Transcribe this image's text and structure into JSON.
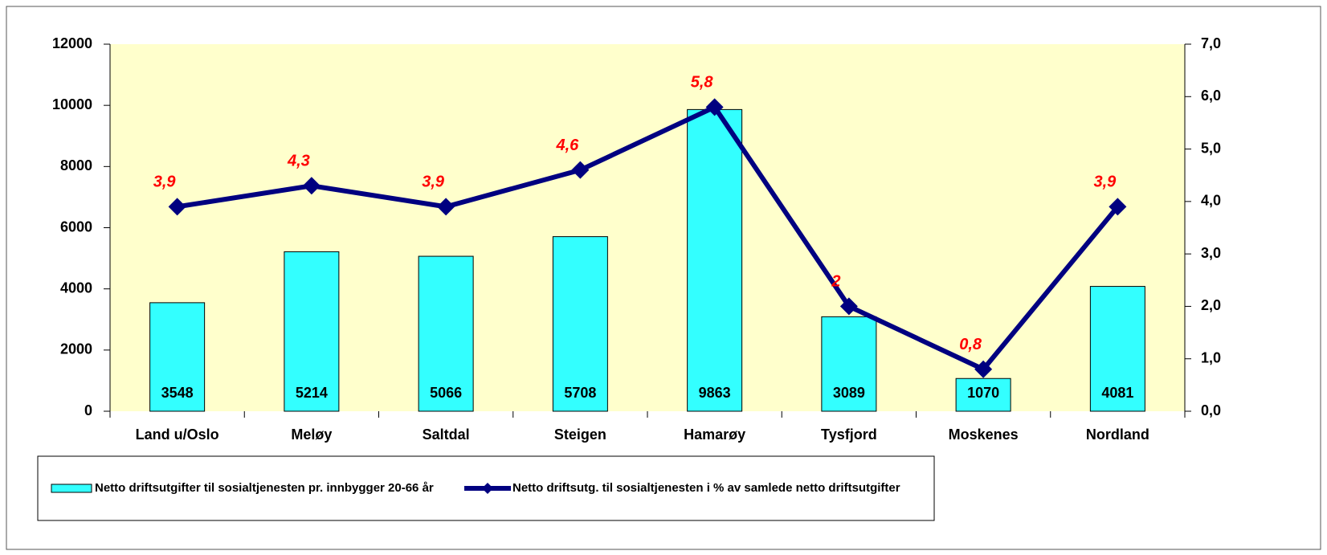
{
  "chart_data": {
    "type": "combo",
    "categories": [
      "Land u/Oslo",
      "Meløy",
      "Saltdal",
      "Steigen",
      "Hamarøy",
      "Tysfjord",
      "Moskenes",
      "Nordland"
    ],
    "series": [
      {
        "name": "Netto driftsutgifter til sosialtjenesten pr. innbygger 20-66 år",
        "type": "bar",
        "color": "#33ffff",
        "values": [
          3548,
          5214,
          5066,
          5708,
          9863,
          3089,
          1070,
          4081
        ]
      },
      {
        "name": "Netto driftsutg. til sosialtjenesten i % av samlede netto driftsutgifter",
        "type": "line",
        "axis": "y2",
        "color": "#000080",
        "values": [
          3.9,
          4.3,
          3.9,
          4.6,
          5.8,
          2,
          0.8,
          3.9
        ],
        "value_labels": [
          "3,9",
          "4,3",
          "3,9",
          "4,6",
          "5,8",
          "2",
          "0,8",
          "3,9"
        ]
      }
    ],
    "ylim": [
      0,
      12000
    ],
    "yticks": [
      0,
      2000,
      4000,
      6000,
      8000,
      10000,
      12000
    ],
    "y2lim": [
      0,
      7
    ],
    "y2ticks": [
      {
        "value": 0,
        "label": "0,0"
      },
      {
        "value": 1,
        "label": "1,0"
      },
      {
        "value": 2,
        "label": "2,0"
      },
      {
        "value": 3,
        "label": "3,0"
      },
      {
        "value": 4,
        "label": "4,0"
      },
      {
        "value": 5,
        "label": "5,0"
      },
      {
        "value": 6,
        "label": "6,0"
      },
      {
        "value": 7,
        "label": "7,0"
      }
    ],
    "plot_background": "#ffffcc"
  }
}
